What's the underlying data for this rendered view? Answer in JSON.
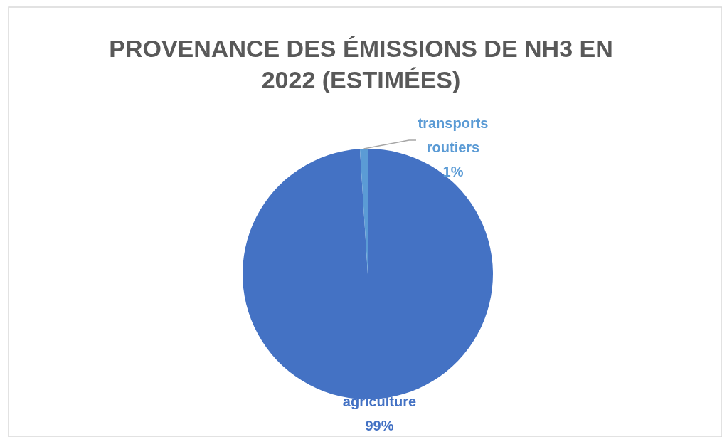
{
  "chart_data": {
    "type": "pie",
    "title": "PROVENANCE DES ÉMISSIONS DE NH3 EN 2022 (ESTIMÉES)",
    "categories": [
      "agriculture",
      "transports routiers"
    ],
    "values": [
      99,
      1
    ],
    "colors": [
      "#4472c4",
      "#5b9bd5"
    ],
    "value_labels": [
      "99%",
      "1%"
    ],
    "legend": false
  }
}
